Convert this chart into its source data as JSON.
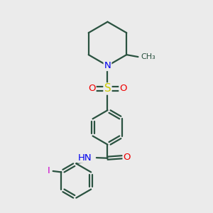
{
  "bg_color": "#ebebeb",
  "bond_color": "#2a5240",
  "atom_colors": {
    "N": "#0000ee",
    "O": "#ee0000",
    "S": "#cccc00",
    "I": "#cc00cc",
    "C": "#2a5240"
  },
  "lw": 1.6,
  "dbo": 0.08,
  "fs": 9.5
}
